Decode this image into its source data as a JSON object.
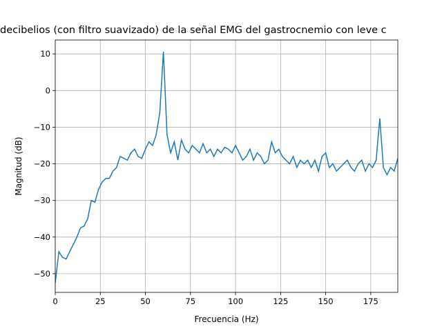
{
  "chart_data": {
    "type": "line",
    "title": "decibelios (con filtro suavizado) de la señal EMG del gastrocnemio con leve c",
    "x_label": "Frecuencia (Hz)",
    "y_label": "Magnitud (dB)",
    "x": [
      0,
      2,
      4,
      6,
      8,
      10,
      12,
      14,
      16,
      18,
      20,
      22,
      24,
      26,
      28,
      30,
      32,
      34,
      36,
      38,
      40,
      42,
      44,
      46,
      48,
      50,
      52,
      54,
      56,
      58,
      60,
      62,
      64,
      66,
      68,
      70,
      72,
      74,
      76,
      78,
      80,
      82,
      84,
      86,
      88,
      90,
      92,
      94,
      96,
      98,
      100,
      102,
      104,
      106,
      108,
      110,
      112,
      114,
      116,
      118,
      120,
      122,
      124,
      126,
      128,
      130,
      132,
      134,
      136,
      138,
      140,
      142,
      144,
      146,
      148,
      150,
      152,
      154,
      156,
      158,
      160,
      162,
      164,
      166,
      168,
      170,
      172,
      174,
      176,
      178,
      180,
      182,
      184,
      186,
      188,
      190
    ],
    "series": [
      {
        "color": "#1f77b4",
        "values": [
          -52.5,
          -44,
          -45.5,
          -46,
          -44,
          -42,
          -40,
          -37.5,
          -37,
          -35,
          -30,
          -30.5,
          -27,
          -25,
          -24,
          -24,
          -22,
          -21,
          -18,
          -18.5,
          -19,
          -17,
          -16,
          -18,
          -18.5,
          -16,
          -14,
          -15,
          -12,
          -6,
          10.6,
          -12,
          -17,
          -14,
          -19,
          -13.5,
          -16,
          -17,
          -15,
          -16,
          -17,
          -14.5,
          -17,
          -16,
          -18,
          -16,
          -17,
          -15.5,
          -16,
          -17,
          -15,
          -17,
          -19,
          -18,
          -16,
          -19,
          -17,
          -18,
          -20,
          -19,
          -14,
          -17,
          -16,
          -18,
          -19,
          -20,
          -18,
          -21,
          -19,
          -20,
          -19,
          -21,
          -19,
          -22,
          -18,
          -17,
          -21,
          -20,
          -22,
          -21,
          -20,
          -19,
          -21,
          -22,
          -20,
          -19,
          -22,
          -20,
          -21,
          -19,
          -7.6,
          -21,
          -23,
          -21,
          -22,
          -18.5
        ]
      }
    ],
    "xlim": [
      0,
      190
    ],
    "xticks": [
      0,
      25,
      50,
      75,
      100,
      125,
      150,
      175
    ],
    "ylim": [
      -55.1,
      13.8
    ],
    "yticks": [
      {
        "value": -50,
        "label": "−50"
      },
      {
        "value": -40,
        "label": "−40"
      },
      {
        "value": -30,
        "label": "−30"
      },
      {
        "value": -20,
        "label": "−20"
      },
      {
        "value": -10,
        "label": "−10"
      },
      0,
      10
    ],
    "grid": true
  }
}
